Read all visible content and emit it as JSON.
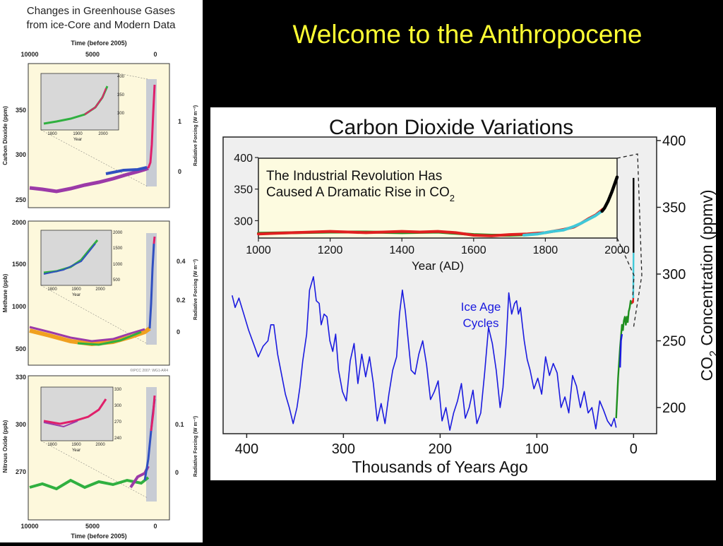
{
  "slide_title": "Welcome to the Anthropocene",
  "colors": {
    "background": "#000000",
    "title": "#ffff33",
    "ice_age_line": "#1a1adf",
    "modern_black": "#000000",
    "industrial_red": "#e02020",
    "green": "#1f8f1f",
    "cyan": "#40c8d8",
    "inset_bg": "#fdfbe0",
    "plot_bg": "#efefef",
    "ghg_panel_bg": "#fdf8dc",
    "ghg_inset_bg": "#d8d8d8",
    "ghg_purple": "#9b3aa8",
    "ghg_orange": "#f0a020",
    "ghg_green": "#30b040",
    "ghg_blue": "#3050c0",
    "ghg_magenta": "#e0206a"
  },
  "left_figure": {
    "title_line1": "Changes in Greenhouse Gases",
    "title_line2": "from ice-Core and Modern Data",
    "top_axis_label": "Time (before 2005)",
    "top_ticks": [
      "10000",
      "5000",
      "0"
    ],
    "bottom_axis_label": "Time (before 2005)",
    "bottom_ticks": [
      "10000",
      "5000",
      "0"
    ],
    "copyright": "©IPCC 2007: WG1-AR4",
    "inset_xticks": [
      "1800",
      "1900",
      "2000"
    ],
    "inset_xlabel": "Year",
    "panels": [
      {
        "ylabel": "Carbon Dioxide (ppm)",
        "yticks": [
          "350",
          "300",
          "250"
        ],
        "right_label": "Radiative Forcing (W m⁻²)",
        "right_ticks": [
          "1",
          "0"
        ],
        "inset_yticks": [
          "400",
          "350",
          "300"
        ]
      },
      {
        "ylabel": "Methane (ppb)",
        "yticks": [
          "2000",
          "1500",
          "1000",
          "500"
        ],
        "right_label": "Radiative Forcing (W m⁻²)",
        "right_ticks": [
          "0.4",
          "0.2",
          "0"
        ],
        "inset_yticks": [
          "2000",
          "1500",
          "1000",
          "500"
        ]
      },
      {
        "ylabel": "Nitrous Oxide (ppb)",
        "yticks": [
          "330",
          "300",
          "270"
        ],
        "right_label": "Radiative Forcing (W m⁻²)",
        "right_ticks": [
          "0.1",
          "0"
        ],
        "inset_yticks": [
          "330",
          "300",
          "270",
          "240"
        ]
      }
    ]
  },
  "chart_data": [
    {
      "type": "line",
      "title": "Carbon Dioxide Variations",
      "xlabel": "Thousands of Years Ago",
      "ylabel": "CO2 Concentration (ppmv)",
      "xlim": [
        420,
        -18
      ],
      "ylim": [
        180,
        400
      ],
      "xticks": [
        400,
        300,
        200,
        100,
        0
      ],
      "yticks": [
        200,
        250,
        300,
        350,
        400
      ],
      "annotation": "Ice Age\nCycles",
      "series": [
        {
          "color": "#1a1adf",
          "x": [
            415,
            412,
            408,
            403,
            398,
            393,
            388,
            383,
            378,
            375,
            372,
            368,
            364,
            360,
            356,
            352,
            348,
            345,
            342,
            338,
            335,
            331,
            328,
            325,
            323,
            320,
            317,
            314,
            311,
            308,
            305,
            301,
            297,
            293,
            289,
            285,
            281,
            277,
            273,
            269,
            265,
            261,
            257,
            253,
            249,
            245,
            242,
            239,
            236,
            233,
            230,
            226,
            222,
            218,
            214,
            210,
            206,
            202,
            198,
            194,
            190,
            186,
            182,
            178,
            174,
            170,
            166,
            162,
            158,
            154,
            150,
            146,
            142,
            138,
            135,
            132,
            129,
            126,
            123,
            121,
            119,
            117,
            115,
            113,
            110,
            107,
            103,
            99,
            95,
            91,
            87,
            83,
            79,
            75,
            71,
            67,
            63,
            59,
            55,
            51,
            47,
            43,
            39,
            35,
            31,
            27,
            23,
            20,
            18
          ],
          "y": [
            284,
            275,
            282,
            270,
            258,
            248,
            238,
            246,
            250,
            262,
            262,
            240,
            225,
            210,
            200,
            188,
            200,
            215,
            235,
            255,
            288,
            298,
            280,
            278,
            262,
            270,
            268,
            250,
            242,
            255,
            228,
            212,
            205,
            235,
            248,
            218,
            240,
            223,
            238,
            218,
            190,
            203,
            188,
            210,
            228,
            238,
            270,
            288,
            272,
            250,
            228,
            225,
            240,
            250,
            232,
            206,
            212,
            220,
            190,
            200,
            183,
            196,
            205,
            218,
            192,
            200,
            213,
            188,
            196,
            226,
            260,
            248,
            228,
            200,
            215,
            245,
            286,
            270,
            278,
            280,
            270,
            275,
            262,
            250,
            236,
            228,
            214,
            222,
            210,
            238,
            224,
            233,
            226,
            200,
            208,
            196,
            224,
            216,
            200,
            212,
            196,
            200,
            184,
            205,
            198,
            190,
            186,
            192,
            185
          ]
        },
        {
          "color": "#1f8f1f",
          "x": [
            18,
            16,
            14,
            12,
            11,
            10,
            9,
            8,
            7,
            6,
            5,
            4,
            3,
            2,
            1
          ],
          "y": [
            192,
            222,
            245,
            262,
            258,
            265,
            268,
            262,
            268,
            264,
            272,
            275,
            280,
            278,
            279
          ]
        },
        {
          "color": "#1a1adf",
          "x": [
            14,
            13,
            12
          ],
          "y": [
            230,
            250,
            255
          ]
        },
        {
          "color": "#e02020",
          "x": [
            1.4,
            0.9,
            0.5,
            0.3
          ],
          "y": [
            278,
            280,
            279,
            282
          ]
        },
        {
          "color": "#40c8d8",
          "x": [
            0.3,
            0.15,
            0.06
          ],
          "y": [
            282,
            300,
            316
          ]
        },
        {
          "color": "#000000",
          "x": [
            0.06,
            0.03,
            0.01
          ],
          "y": [
            316,
            345,
            372
          ]
        }
      ]
    },
    {
      "type": "line",
      "title": "The Industrial Revolution Has Caused A Dramatic Rise in CO2",
      "xlabel": "Year (AD)",
      "ylabel": "",
      "xlim": [
        1000,
        2000
      ],
      "ylim": [
        280,
        400
      ],
      "xticks": [
        1000,
        1200,
        1400,
        1600,
        1800,
        2000
      ],
      "yticks": [
        300,
        350,
        400
      ],
      "series": [
        {
          "color": "#1f8f1f",
          "x": [
            1000,
            1100,
            1200,
            1300,
            1400,
            1500,
            1550,
            1600,
            1650,
            1700,
            1750
          ],
          "y": [
            280,
            281,
            282,
            282,
            281,
            282,
            280,
            278,
            277,
            277,
            278
          ]
        },
        {
          "color": "#e02020",
          "x": [
            1000,
            1050,
            1100,
            1150,
            1200,
            1250,
            1300,
            1350,
            1400,
            1450,
            1500,
            1550,
            1600,
            1650,
            1700,
            1750,
            1800,
            1850,
            1880,
            1900,
            1920,
            1940,
            1960
          ],
          "y": [
            279,
            280,
            281,
            282,
            283,
            282,
            281,
            282,
            283,
            282,
            283,
            281,
            277,
            276,
            278,
            279,
            281,
            286,
            290,
            296,
            303,
            309,
            318
          ]
        },
        {
          "color": "#40c8d8",
          "x": [
            1740,
            1780,
            1820,
            1850,
            1880,
            1900,
            1920,
            1940,
            1955
          ],
          "y": [
            277,
            279,
            283,
            285,
            291,
            296,
            302,
            308,
            314
          ]
        },
        {
          "color": "#000000",
          "x": [
            1958,
            1965,
            1975,
            1985,
            1995,
            2000
          ],
          "y": [
            315,
            320,
            331,
            345,
            361,
            369
          ]
        }
      ]
    }
  ]
}
